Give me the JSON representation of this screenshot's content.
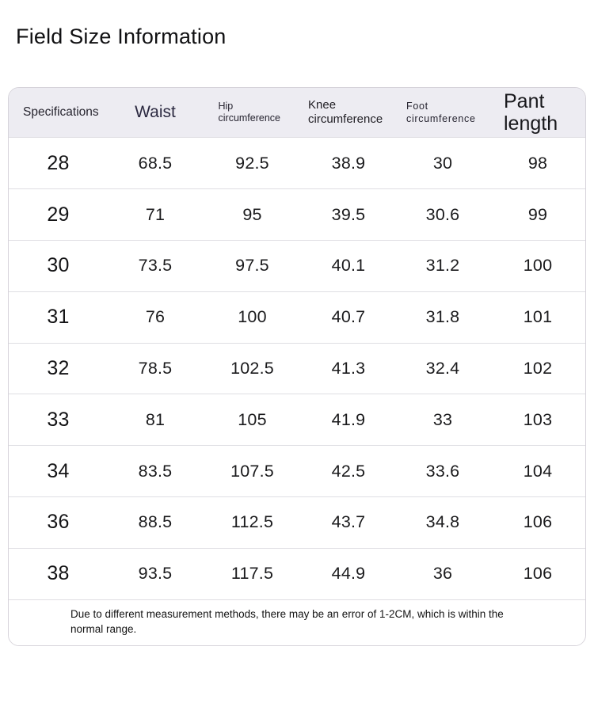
{
  "page": {
    "title": "Field Size Information"
  },
  "chart_data": {
    "type": "table",
    "title": "Field Size Information",
    "columns": [
      "Specifications",
      "Waist",
      "Hip circumference",
      "Knee circumference",
      "Foot circumference",
      "Pant length"
    ],
    "rows": [
      [
        "28",
        "68.5",
        "92.5",
        "38.9",
        "30",
        "98"
      ],
      [
        "29",
        "71",
        "95",
        "39.5",
        "30.6",
        "99"
      ],
      [
        "30",
        "73.5",
        "97.5",
        "40.1",
        "31.2",
        "100"
      ],
      [
        "31",
        "76",
        "100",
        "40.7",
        "31.8",
        "101"
      ],
      [
        "32",
        "78.5",
        "102.5",
        "41.3",
        "32.4",
        "102"
      ],
      [
        "33",
        "81",
        "105",
        "41.9",
        "33",
        "103"
      ],
      [
        "34",
        "83.5",
        "107.5",
        "42.5",
        "33.6",
        "104"
      ],
      [
        "36",
        "88.5",
        "112.5",
        "43.7",
        "34.8",
        "106"
      ],
      [
        "38",
        "93.5",
        "117.5",
        "44.9",
        "36",
        "106"
      ]
    ],
    "note": "Due to different measurement methods, there may be an error of 1-2CM, which is within the normal range."
  },
  "colors": {
    "page_background": "#ffffff",
    "header_background": "#edecf2",
    "header_text": "#2b2936",
    "body_text": "#1b1b1d",
    "border": "#d6d3da",
    "row_separator": "#dfdee3"
  }
}
